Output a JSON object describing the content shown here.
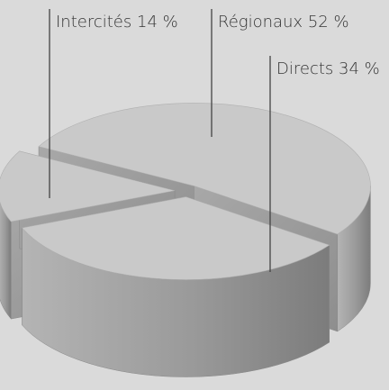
{
  "chart_data": {
    "type": "pie3d",
    "categories": [
      "Intercités",
      "Régionaux",
      "Directs"
    ],
    "values": [
      14,
      52,
      34
    ],
    "value_labels": [
      "14 %",
      "52 %",
      "34 %"
    ],
    "color": "#c9c9c9"
  }
}
